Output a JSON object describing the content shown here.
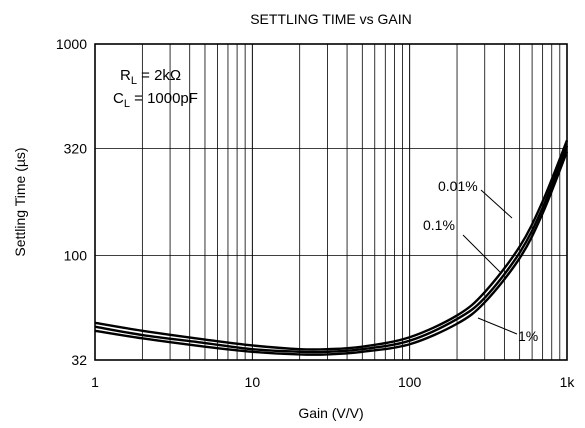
{
  "chart_data": {
    "type": "line",
    "title": "SETTLING TIME vs GAIN",
    "xlabel": "Gain (V/V)",
    "ylabel": "Settling Time (µs)",
    "x_scale": "log",
    "y_scale": "log",
    "xlim": [
      1,
      1000
    ],
    "ylim": [
      32,
      1000
    ],
    "x_ticks": [
      1,
      10,
      100,
      1000
    ],
    "x_tick_labels": [
      "1",
      "10",
      "100",
      "1k"
    ],
    "y_ticks": [
      32,
      100,
      320,
      1000
    ],
    "y_tick_labels": [
      "32",
      "100",
      "320",
      "1000"
    ],
    "grid": true,
    "annotation": {
      "rl_main": "R",
      "rl_sub": "L",
      "rl_value": " = 2kΩ",
      "cl_main": "C",
      "cl_sub": "L",
      "cl_value": " = 1000pF"
    },
    "series": [
      {
        "name": "0.01%",
        "x": [
          1,
          2,
          5,
          10,
          20,
          30,
          50,
          100,
          200,
          300,
          500,
          700,
          1000
        ],
        "y": [
          48,
          44,
          40,
          37.5,
          36,
          36,
          37,
          41,
          52,
          67,
          110,
          180,
          350
        ]
      },
      {
        "name": "0.1%",
        "x": [
          1,
          2,
          5,
          10,
          20,
          30,
          50,
          100,
          200,
          300,
          500,
          700,
          1000
        ],
        "y": [
          46,
          42,
          38.5,
          36,
          35,
          35,
          36,
          39.5,
          50,
          63,
          103,
          168,
          330
        ]
      },
      {
        "name": "1%",
        "x": [
          1,
          2,
          5,
          10,
          20,
          30,
          50,
          100,
          200,
          300,
          500,
          700,
          1000
        ],
        "y": [
          44,
          40.5,
          37,
          35,
          34,
          34,
          35,
          38,
          47.5,
          60,
          97,
          158,
          310
        ]
      }
    ]
  }
}
